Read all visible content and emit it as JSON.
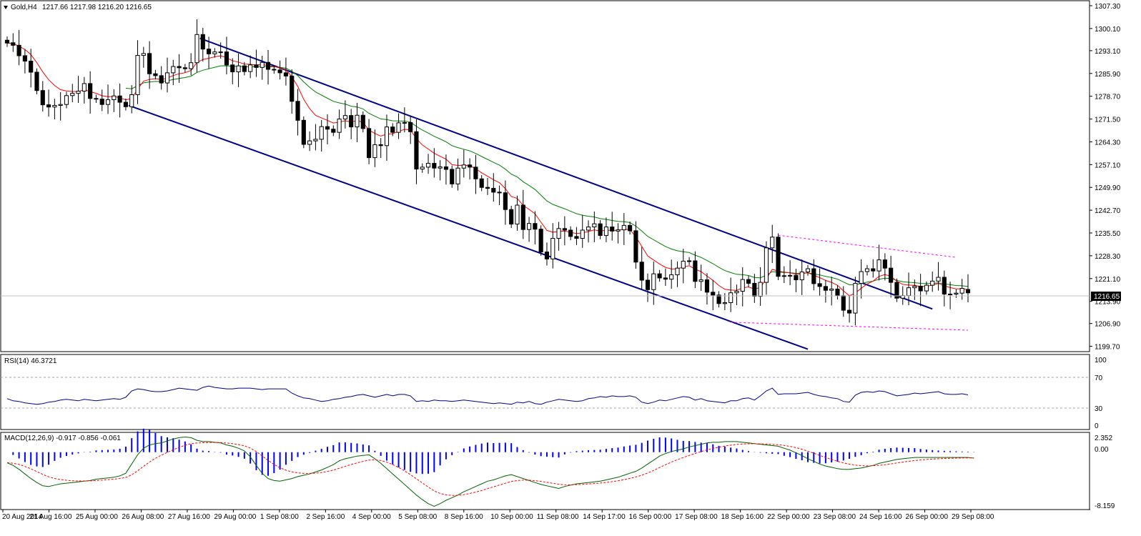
{
  "header": {
    "symbol_timeframe": "Gold,H4",
    "ohlc": "1217.66 1217.98 1216.20 1216.65"
  },
  "rsi": {
    "label": "RSI(14) 46.3721",
    "ticks": [
      "100",
      "70",
      "30",
      "0"
    ]
  },
  "macd": {
    "label": "MACD(12,26,9) -0.917 -0.856 -0.061",
    "ticks": [
      "2.352",
      "0.00",
      "-8.159"
    ]
  },
  "current_price": "1216.65",
  "colors": {
    "candle_up": "#ffffff",
    "candle_down": "#000000",
    "ma_fast": "#ff0000",
    "ma_slow": "#008000",
    "ma_flat": "#ffff00",
    "channel": "#00008b",
    "range": "#ff00ff",
    "rsi": "#00008b",
    "macd_hist": "#0000ff",
    "macd_line": "#006400",
    "macd_signal": "#ff0000"
  },
  "chart_data": {
    "type": "candlestick",
    "price_ticks": [
      "1307.30",
      "1300.10",
      "1293.10",
      "1285.90",
      "1278.70",
      "1271.50",
      "1264.30",
      "1257.10",
      "1249.90",
      "1242.70",
      "1235.50",
      "1228.30",
      "1221.10",
      "1213.90",
      "1206.90",
      "1199.70"
    ],
    "price_range": [
      1198.7,
      1308.2
    ],
    "x_labels": [
      "20 Aug 2014",
      "21 Aug 16:00",
      "25 Aug 00:00",
      "26 Aug 08:00",
      "27 Aug 16:00",
      "29 Aug 00:00",
      "1 Sep 08:00",
      "2 Sep 16:00",
      "4 Sep 00:00",
      "5 Sep 08:00",
      "8 Sep 16:00",
      "10 Sep 00:00",
      "11 Sep 08:00",
      "14 Sep 17:00",
      "16 Sep 00:00",
      "17 Sep 08:00",
      "18 Sep 16:00",
      "22 Sep 00:00",
      "23 Sep 08:00",
      "24 Sep 16:00",
      "26 Sep 00:00",
      "29 Sep 08:00"
    ],
    "close": [
      1295.5,
      1294.8,
      1291.5,
      1289.8,
      1286.3,
      1280.5,
      1276.0,
      1275.3,
      1275.8,
      1276.1,
      1278.9,
      1279.6,
      1280.3,
      1282.7,
      1278.0,
      1277.8,
      1276.1,
      1277.6,
      1278.8,
      1276.8,
      1275.4,
      1279.2,
      1291.6,
      1292.2,
      1285.8,
      1285.2,
      1282.9,
      1286.1,
      1288.1,
      1287.7,
      1287.4,
      1289.3,
      1298.2,
      1293.6,
      1292.1,
      1292.7,
      1292.7,
      1288.6,
      1286.4,
      1288.3,
      1286.5,
      1288.6,
      1287.8,
      1289.4,
      1287.2,
      1287.0,
      1286.1,
      1285.1,
      1277.1,
      1271.1,
      1263.5,
      1264.6,
      1265.1,
      1269.1,
      1268.3,
      1267.3,
      1271.5,
      1272.6,
      1269.0,
      1272.7,
      1268.5,
      1259.3,
      1263.4,
      1263.1,
      1269.0,
      1267.3,
      1270.3,
      1270.4,
      1267.5,
      1255.7,
      1256.3,
      1257.5,
      1256.0,
      1256.4,
      1255.6,
      1251.0,
      1256.0,
      1257.0,
      1256.3,
      1252.6,
      1249.9,
      1249.6,
      1248.4,
      1248.2,
      1242.9,
      1238.3,
      1244.3,
      1236.6,
      1238.5,
      1236.7,
      1229.5,
      1227.3,
      1233.8,
      1236.9,
      1236.4,
      1234.4,
      1233.8,
      1236.4,
      1237.4,
      1238.4,
      1234.7,
      1237.4,
      1236.1,
      1236.5,
      1237.9,
      1236.2,
      1226.3,
      1220.6,
      1217.6,
      1222.6,
      1221.3,
      1220.9,
      1222.3,
      1224.4,
      1226.6,
      1226.7,
      1220.2,
      1220.7,
      1216.8,
      1215.9,
      1213.2,
      1213.5,
      1216.6,
      1217.1,
      1220.8,
      1219.6,
      1215.5,
      1219.9,
      1230.8,
      1234.2,
      1221.8,
      1222.0,
      1222.1,
      1220.7,
      1223.2,
      1224.2,
      1219.5,
      1218.6,
      1217.4,
      1217.8,
      1215.7,
      1211.1,
      1210.2,
      1219.6,
      1223.3,
      1224.2,
      1223.5,
      1227.0,
      1224.4,
      1219.9,
      1214.9,
      1215.7,
      1218.2,
      1218.7,
      1217.2,
      1219.0,
      1220.3,
      1221.5,
      1216.2,
      1216.2,
      1216.5,
      1218.0,
      1216.6
    ],
    "open": [
      1296.4,
      1295.6,
      1294.8,
      1291.5,
      1289.8,
      1286.3,
      1280.5,
      1276.0,
      1275.3,
      1275.8,
      1276.1,
      1278.9,
      1279.6,
      1280.3,
      1282.7,
      1278.0,
      1277.8,
      1276.1,
      1277.6,
      1278.8,
      1276.8,
      1275.4,
      1279.2,
      1291.6,
      1292.2,
      1285.8,
      1285.2,
      1282.9,
      1286.1,
      1288.1,
      1287.7,
      1287.4,
      1289.3,
      1298.2,
      1293.6,
      1292.1,
      1292.7,
      1292.7,
      1288.6,
      1286.4,
      1288.3,
      1286.5,
      1288.6,
      1287.8,
      1289.4,
      1287.2,
      1287.0,
      1286.1,
      1285.1,
      1277.1,
      1271.1,
      1263.5,
      1264.6,
      1265.1,
      1269.1,
      1268.3,
      1267.3,
      1271.5,
      1272.6,
      1269.0,
      1272.7,
      1268.5,
      1259.3,
      1263.4,
      1263.1,
      1269.0,
      1267.3,
      1270.3,
      1270.4,
      1267.5,
      1255.7,
      1256.3,
      1257.5,
      1256.0,
      1256.4,
      1255.6,
      1251.0,
      1256.0,
      1257.0,
      1256.3,
      1252.6,
      1249.9,
      1249.6,
      1248.4,
      1248.2,
      1242.9,
      1238.3,
      1244.3,
      1236.6,
      1238.5,
      1236.7,
      1229.5,
      1227.3,
      1233.8,
      1236.9,
      1236.4,
      1234.4,
      1233.8,
      1236.4,
      1237.4,
      1238.4,
      1234.7,
      1237.4,
      1236.1,
      1236.5,
      1237.9,
      1236.2,
      1226.3,
      1220.6,
      1217.6,
      1222.6,
      1221.3,
      1220.9,
      1222.3,
      1224.4,
      1226.6,
      1226.7,
      1220.2,
      1220.7,
      1216.8,
      1215.9,
      1213.2,
      1213.5,
      1216.6,
      1217.1,
      1220.8,
      1219.6,
      1215.5,
      1219.9,
      1230.8,
      1234.2,
      1221.8,
      1222.0,
      1222.1,
      1220.7,
      1223.2,
      1224.2,
      1219.5,
      1218.6,
      1217.4,
      1217.8,
      1215.7,
      1211.1,
      1210.2,
      1219.6,
      1223.3,
      1224.2,
      1223.5,
      1227.0,
      1224.4,
      1219.9,
      1214.9,
      1215.7,
      1218.2,
      1218.7,
      1217.2,
      1219.0,
      1220.3,
      1221.5,
      1216.2,
      1216.2,
      1216.5,
      1217.66
    ],
    "rsi_values": [
      41,
      38,
      37,
      35,
      34,
      33,
      34,
      36,
      37,
      39,
      40,
      39,
      38,
      40,
      39,
      38,
      39,
      40,
      41,
      40,
      43,
      52,
      55,
      54,
      52,
      51,
      51,
      52,
      54,
      56,
      55,
      54,
      53,
      57,
      59,
      57,
      56,
      55,
      55,
      56,
      56,
      56,
      55,
      54,
      55,
      55,
      55,
      55,
      49,
      45,
      42,
      41,
      39,
      37,
      38,
      40,
      41,
      43,
      44,
      46,
      47,
      45,
      43,
      45,
      47,
      45,
      47,
      47,
      45,
      37,
      38,
      37,
      39,
      38,
      38,
      37,
      38,
      39,
      38,
      37,
      36,
      35,
      34,
      35,
      34,
      33,
      36,
      35,
      37,
      34,
      33,
      36,
      38,
      40,
      39,
      38,
      37,
      38,
      41,
      42,
      44,
      43,
      45,
      44,
      44,
      45,
      43,
      36,
      34,
      36,
      39,
      38,
      40,
      42,
      44,
      43,
      39,
      41,
      38,
      37,
      36,
      35,
      38,
      38,
      41,
      42,
      39,
      45,
      52,
      56,
      47,
      48,
      48,
      48,
      49,
      50,
      47,
      45,
      44,
      42,
      41,
      37,
      36,
      46,
      50,
      51,
      50,
      52,
      51,
      48,
      45,
      46,
      47,
      49,
      48,
      49,
      50,
      51,
      48,
      47,
      47,
      48,
      46.4
    ],
    "macd_values": [
      -1.6,
      -2.0,
      -2.6,
      -3.3,
      -4.0,
      -4.6,
      -5.1,
      -5.2,
      -5.0,
      -4.8,
      -4.7,
      -4.6,
      -4.5,
      -4.4,
      -4.3,
      -4.1,
      -4.0,
      -3.9,
      -3.8,
      -3.6,
      -3.2,
      -1.8,
      -0.4,
      0.6,
      1.1,
      1.3,
      1.4,
      1.7,
      2.0,
      2.2,
      2.3,
      2.2,
      1.8,
      1.6,
      1.6,
      1.5,
      1.4,
      1.1,
      0.9,
      0.6,
      0.2,
      -0.7,
      -2.0,
      -3.2,
      -4.0,
      -4.3,
      -4.4,
      -4.2,
      -4.0,
      -3.7,
      -3.5,
      -3.3,
      -3.0,
      -2.7,
      -2.3,
      -1.9,
      -1.3,
      -1.0,
      -0.8,
      -0.6,
      -0.5,
      -0.4,
      -1.0,
      -1.7,
      -2.5,
      -3.3,
      -4.1,
      -4.9,
      -5.7,
      -6.5,
      -7.2,
      -7.8,
      -8.2,
      -7.8,
      -7.3,
      -6.9,
      -6.5,
      -6.0,
      -5.6,
      -5.2,
      -4.8,
      -4.4,
      -4.2,
      -3.9,
      -3.6,
      -3.4,
      -3.7,
      -4.0,
      -4.3,
      -4.6,
      -4.9,
      -5.1,
      -5.3,
      -5.5,
      -5.2,
      -5.0,
      -4.8,
      -4.7,
      -4.6,
      -4.5,
      -4.4,
      -4.2,
      -4.0,
      -3.8,
      -3.5,
      -3.2,
      -2.9,
      -2.4,
      -1.8,
      -1.2,
      -0.6,
      -0.2,
      0.1,
      0.3,
      0.5,
      0.8,
      1.0,
      1.2,
      1.4,
      1.5,
      1.5,
      1.6,
      1.6,
      1.6,
      1.5,
      1.4,
      1.3,
      1.2,
      1.1,
      1.0,
      0.9,
      0.6,
      0.3,
      -0.1,
      -0.5,
      -1.0,
      -1.4,
      -1.8,
      -2.1,
      -2.3,
      -2.5,
      -2.6,
      -2.6,
      -2.5,
      -2.4,
      -2.2,
      -2.0,
      -1.7,
      -1.5,
      -1.3,
      -1.1,
      -1.0,
      -0.9,
      -0.8,
      -0.8,
      -0.8,
      -0.8,
      -0.8,
      -0.8,
      -0.8,
      -0.8,
      -0.8,
      -0.8,
      -0.9
    ]
  }
}
